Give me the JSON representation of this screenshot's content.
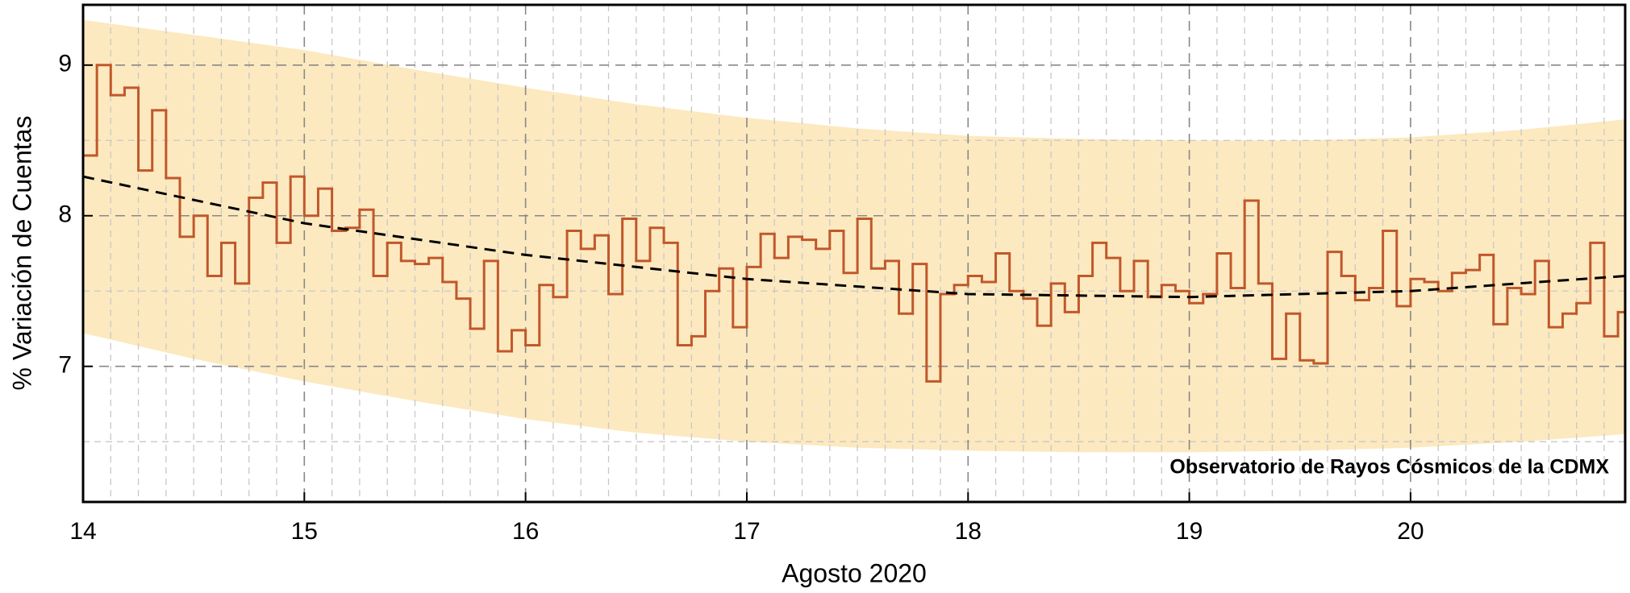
{
  "chart_data": {
    "type": "step",
    "xlabel": "Agosto 2020",
    "ylabel": "% Variación de Cuentas",
    "annotation": "Observatorio de Rayos Cósmicos de la CDMX",
    "xlim": [
      14,
      20.97
    ],
    "ylim": [
      6.1,
      9.4
    ],
    "xticks": [
      14,
      15,
      16,
      17,
      18,
      19,
      20
    ],
    "yticks": [
      7,
      8,
      9
    ],
    "minor_yticks": [
      6.5,
      7.5,
      8.5
    ],
    "minor_xticks": [
      14.125,
      14.25,
      14.375,
      14.5,
      14.625,
      14.75,
      14.875,
      15.125,
      15.25,
      15.375,
      15.5,
      15.625,
      15.75,
      15.875,
      16.125,
      16.25,
      16.375,
      16.5,
      16.625,
      16.75,
      16.875,
      17.125,
      17.25,
      17.375,
      17.5,
      17.625,
      17.75,
      17.875,
      18.125,
      18.25,
      18.375,
      18.5,
      18.625,
      18.75,
      18.875,
      19.125,
      19.25,
      19.375,
      19.5,
      19.625,
      19.75,
      19.875,
      20.125,
      20.25,
      20.375,
      20.5,
      20.625,
      20.75,
      20.875
    ],
    "grid": true,
    "series": [
      {
        "color": "#c0582b",
        "x": [
          14,
          14.0625,
          14.125,
          14.1875,
          14.25,
          14.3125,
          14.375,
          14.4375,
          14.5,
          14.5625,
          14.625,
          14.6875,
          14.75,
          14.8125,
          14.875,
          14.9375,
          15,
          15.0625,
          15.125,
          15.1875,
          15.25,
          15.3125,
          15.375,
          15.4375,
          15.5,
          15.5625,
          15.625,
          15.6875,
          15.75,
          15.8125,
          15.875,
          15.9375,
          16,
          16.0625,
          16.125,
          16.1875,
          16.25,
          16.3125,
          16.375,
          16.4375,
          16.5,
          16.5625,
          16.625,
          16.6875,
          16.75,
          16.8125,
          16.875,
          16.9375,
          17,
          17.0625,
          17.125,
          17.1875,
          17.25,
          17.3125,
          17.375,
          17.4375,
          17.5,
          17.5625,
          17.625,
          17.6875,
          17.75,
          17.8125,
          17.875,
          17.9375,
          18,
          18.0625,
          18.125,
          18.1875,
          18.25,
          18.3125,
          18.375,
          18.4375,
          18.5,
          18.5625,
          18.625,
          18.6875,
          18.75,
          18.8125,
          18.875,
          18.9375,
          19,
          19.0625,
          19.125,
          19.1875,
          19.25,
          19.3125,
          19.375,
          19.4375,
          19.5,
          19.5625,
          19.625,
          19.6875,
          19.75,
          19.8125,
          19.875,
          19.9375,
          20,
          20.0625,
          20.125,
          20.1875,
          20.25,
          20.3125,
          20.375,
          20.4375,
          20.5,
          20.5625,
          20.625,
          20.6875,
          20.75,
          20.8125,
          20.875,
          20.9375
        ],
        "values": [
          8.4,
          9.0,
          8.8,
          8.85,
          8.3,
          8.7,
          8.25,
          7.86,
          8.0,
          7.6,
          7.82,
          7.55,
          8.12,
          8.22,
          7.82,
          8.26,
          8.0,
          8.18,
          7.9,
          7.92,
          8.04,
          7.6,
          7.82,
          7.7,
          7.68,
          7.72,
          7.56,
          7.45,
          7.25,
          7.7,
          7.1,
          7.24,
          7.14,
          7.54,
          7.46,
          7.9,
          7.78,
          7.87,
          7.48,
          7.98,
          7.7,
          7.92,
          7.82,
          7.14,
          7.2,
          7.5,
          7.65,
          7.26,
          7.66,
          7.88,
          7.72,
          7.86,
          7.84,
          7.78,
          7.9,
          7.62,
          7.98,
          7.65,
          7.7,
          7.35,
          7.68,
          6.9,
          7.48,
          7.54,
          7.6,
          7.56,
          7.75,
          7.5,
          7.45,
          7.27,
          7.55,
          7.36,
          7.6,
          7.82,
          7.72,
          7.5,
          7.7,
          7.46,
          7.54,
          7.5,
          7.42,
          7.48,
          7.75,
          7.52,
          8.1,
          7.55,
          7.05,
          7.35,
          7.04,
          7.02,
          7.76,
          7.6,
          7.44,
          7.52,
          7.9,
          7.4,
          7.58,
          7.56,
          7.5,
          7.62,
          7.64,
          7.74,
          7.28,
          7.52,
          7.48,
          7.7,
          7.26,
          7.35,
          7.42,
          7.82,
          7.2,
          7.36
        ]
      },
      {
        "type": "line",
        "color": "#000000",
        "dashed": true,
        "x": [
          14,
          15,
          16,
          17,
          18,
          19,
          20,
          20.97
        ],
        "values": [
          8.26,
          7.95,
          7.74,
          7.58,
          7.48,
          7.46,
          7.5,
          7.6
        ]
      }
    ],
    "band": {
      "color": "#fde9bf",
      "x": [
        14,
        14.5,
        15,
        15.5,
        16,
        16.5,
        17,
        17.5,
        18,
        18.5,
        19,
        19.5,
        20,
        20.5,
        20.97
      ],
      "upper": [
        9.3,
        9.2,
        9.1,
        8.97,
        8.85,
        8.74,
        8.65,
        8.58,
        8.53,
        8.51,
        8.5,
        8.5,
        8.52,
        8.57,
        8.64
      ],
      "lower": [
        7.22,
        7.05,
        6.9,
        6.77,
        6.65,
        6.56,
        6.5,
        6.46,
        6.44,
        6.43,
        6.43,
        6.44,
        6.46,
        6.5,
        6.55
      ]
    }
  }
}
